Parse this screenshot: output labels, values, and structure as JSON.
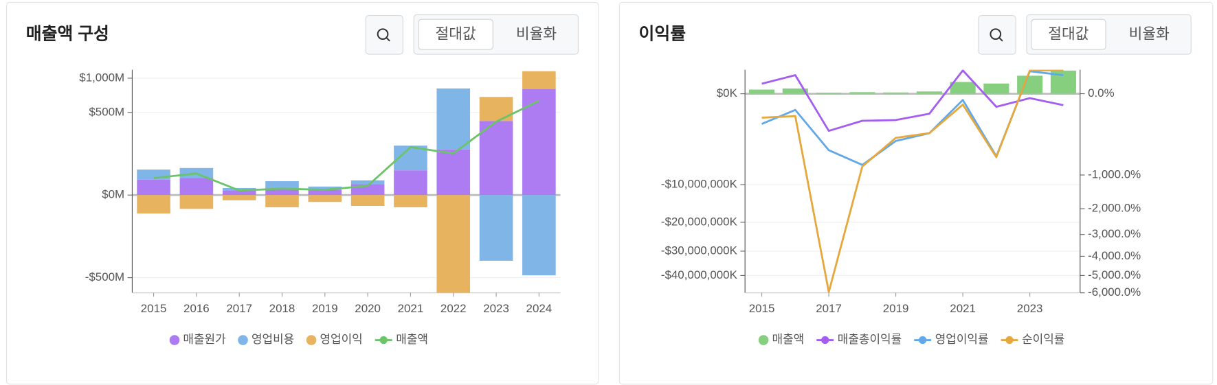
{
  "panels": [
    {
      "buttons": [
        "절대값",
        "비율화"
      ],
      "selected": 0
    },
    {
      "buttons": [
        "절대값",
        "비율화"
      ],
      "selected": 0
    }
  ],
  "chart_data": [
    {
      "type": "combo",
      "title": "매출액 구성",
      "yscale": "sqrt",
      "grid": true,
      "stacked": true,
      "categories": [
        "2015",
        "2016",
        "2017",
        "2018",
        "2019",
        "2020",
        "2021",
        "2022",
        "2023",
        "2024"
      ],
      "ylim": [
        -700,
        1150
      ],
      "yticks": [
        {
          "value": 1000,
          "label": "$1,000M"
        },
        {
          "value": 500,
          "label": "$500M"
        },
        {
          "value": 0,
          "label": "$0M"
        },
        {
          "value": -500,
          "label": "-$500M"
        }
      ],
      "series": [
        {
          "name": "매출원가",
          "type": "bar",
          "color": "#ad7bf2",
          "values": [
            17.5,
            21,
            1.6,
            3.5,
            2.1,
            8.6,
            44.7,
            152,
            402,
            820
          ]
        },
        {
          "name": "영업비용",
          "type": "bar",
          "color": "#80b5e8",
          "values": [
            30,
            32.5,
            2,
            10.5,
            3.2,
            7.2,
            134,
            680,
            -316,
            -472
          ]
        },
        {
          "name": "영업이익",
          "type": "bar",
          "color": "#e8b35f",
          "values": [
            -25,
            -14,
            -2,
            -11,
            -3.5,
            -8.6,
            -11,
            -700,
            303,
            302
          ]
        },
        {
          "name": "매출액",
          "type": "line",
          "color": "#6cc46a",
          "values": [
            21,
            34,
            1.5,
            3,
            2,
            6.3,
            168,
            127,
            394,
            650
          ]
        }
      ]
    },
    {
      "type": "combo",
      "title": "이익률",
      "yscale": "sqrt",
      "grid": true,
      "x": [
        2015,
        2016,
        2017,
        2018,
        2019,
        2020,
        2021,
        2022,
        2023,
        2024
      ],
      "xlim": [
        2014.5,
        2024.5
      ],
      "xticks": [
        2015,
        2017,
        2019,
        2021,
        2023
      ],
      "ylim": [
        -48000000,
        700000
      ],
      "yticks": [
        {
          "value": 0,
          "label": "$0K"
        },
        {
          "value": -10000000,
          "label": "-$10,000,000K"
        },
        {
          "value": -20000000,
          "label": "-$20,000,000K"
        },
        {
          "value": -30000000,
          "label": "-$30,000,000K"
        },
        {
          "value": -40000000,
          "label": "-$40,000,000K"
        }
      ],
      "y2lim": [
        -6000,
        87
      ],
      "y2ticks": [
        {
          "value": 0,
          "label": "0.0%"
        },
        {
          "value": -1000,
          "label": "-1,000.0%"
        },
        {
          "value": -2000,
          "label": "-2,000.0%"
        },
        {
          "value": -3000,
          "label": "-3,000.0%"
        },
        {
          "value": -4000,
          "label": "-4,000.0%"
        },
        {
          "value": -5000,
          "label": "-5,000.0%"
        },
        {
          "value": -6000,
          "label": "-6,000.0%"
        }
      ],
      "series": [
        {
          "name": "매출액",
          "type": "bar",
          "axis": "y",
          "color": "#86cf7f",
          "values": [
            21000,
            34000,
            1500,
            3000,
            2000,
            6300,
            168000,
            127000,
            394000,
            650000
          ]
        },
        {
          "name": "매출총이익률",
          "type": "line",
          "axis": "y2",
          "color": "#a35ef0",
          "values": [
            15,
            52,
            -209,
            -111,
            -105,
            -61,
            82,
            -26,
            -3,
            -20
          ]
        },
        {
          "name": "영업이익률",
          "type": "line",
          "axis": "y2",
          "color": "#62a8e8",
          "values": [
            -138,
            -40,
            -483,
            -768,
            -338,
            -236,
            -6,
            -595,
            76,
            52
          ]
        },
        {
          "name": "순이익률",
          "type": "line",
          "axis": "y2",
          "color": "#e6a83d",
          "values": [
            -87,
            -76,
            -5950,
            -802,
            -295,
            -236,
            -18,
            -610,
            82,
            82
          ]
        }
      ]
    }
  ]
}
